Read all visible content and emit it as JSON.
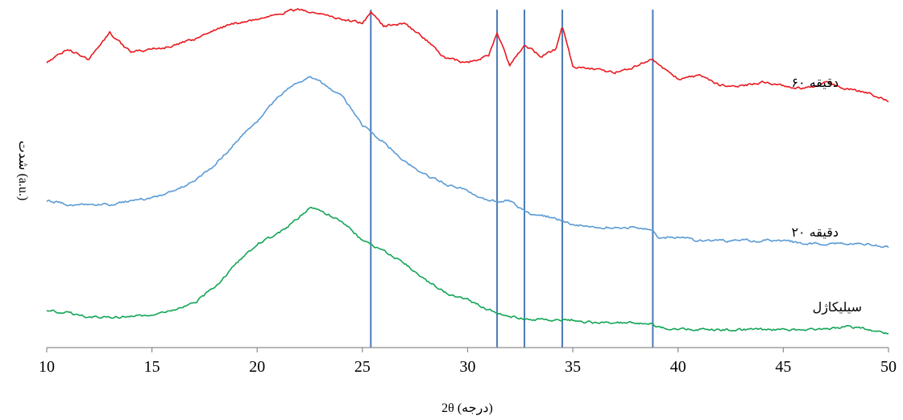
{
  "chart_data": {
    "type": "line",
    "xlabel": "2θ (درجه)",
    "ylabel": "شدت (a.u.)",
    "xlim": [
      10,
      50
    ],
    "x_ticks": [
      10,
      15,
      20,
      25,
      30,
      35,
      40,
      45,
      50
    ],
    "ylim": [
      0,
      100
    ],
    "grid": false,
    "legend": "labels placed at right beside each curve",
    "reference_lines": [
      25.4,
      31.4,
      32.7,
      34.5,
      38.8
    ],
    "reference_line_color": "#4a7ab5",
    "series": [
      {
        "name": "۶۰ دقیقه",
        "color": "#e8191e",
        "points": [
          [
            10,
            84
          ],
          [
            11,
            88
          ],
          [
            12,
            85
          ],
          [
            13,
            93
          ],
          [
            14,
            87
          ],
          [
            15,
            88
          ],
          [
            16,
            89
          ],
          [
            17,
            91
          ],
          [
            18,
            94
          ],
          [
            19,
            96
          ],
          [
            20,
            97
          ],
          [
            21,
            99
          ],
          [
            22,
            100
          ],
          [
            23,
            99
          ],
          [
            24,
            97
          ],
          [
            25,
            96
          ],
          [
            25.4,
            99
          ],
          [
            26,
            95
          ],
          [
            27,
            96
          ],
          [
            28,
            91
          ],
          [
            29,
            85
          ],
          [
            30,
            84
          ],
          [
            31,
            86
          ],
          [
            31.4,
            93
          ],
          [
            32,
            83
          ],
          [
            32.7,
            89
          ],
          [
            33.5,
            86
          ],
          [
            34.2,
            88
          ],
          [
            34.5,
            95
          ],
          [
            35,
            83
          ],
          [
            36,
            82
          ],
          [
            37,
            81
          ],
          [
            38,
            83
          ],
          [
            38.8,
            85
          ],
          [
            39.5,
            81
          ],
          [
            40,
            79
          ],
          [
            41,
            80
          ],
          [
            42,
            77
          ],
          [
            43,
            77
          ],
          [
            44,
            78
          ],
          [
            45,
            77
          ],
          [
            46,
            76
          ],
          [
            47,
            78
          ],
          [
            48,
            76
          ],
          [
            49,
            75
          ],
          [
            50,
            72
          ]
        ]
      },
      {
        "name": "۲۰ دقیقه",
        "color": "#5b9bd5",
        "points": [
          [
            10,
            42
          ],
          [
            11,
            41
          ],
          [
            12,
            41
          ],
          [
            13,
            41
          ],
          [
            14,
            42
          ],
          [
            15,
            43
          ],
          [
            16,
            45
          ],
          [
            17,
            48
          ],
          [
            18,
            53
          ],
          [
            19,
            60
          ],
          [
            20,
            66
          ],
          [
            21,
            74
          ],
          [
            22,
            78
          ],
          [
            22.5,
            80
          ],
          [
            23,
            78
          ],
          [
            24,
            74
          ],
          [
            25,
            65
          ],
          [
            26,
            60
          ],
          [
            27,
            54
          ],
          [
            28,
            50
          ],
          [
            29,
            47
          ],
          [
            30,
            45
          ],
          [
            31,
            42
          ],
          [
            32,
            42
          ],
          [
            32.7,
            39
          ],
          [
            33,
            38
          ],
          [
            34,
            37
          ],
          [
            35,
            35
          ],
          [
            36,
            34
          ],
          [
            37,
            34
          ],
          [
            38,
            34
          ],
          [
            38.8,
            33
          ],
          [
            39,
            31
          ],
          [
            40,
            31
          ],
          [
            41,
            30
          ],
          [
            42,
            30
          ],
          [
            43,
            30
          ],
          [
            44,
            30
          ],
          [
            45,
            30
          ],
          [
            46,
            29
          ],
          [
            47,
            29
          ],
          [
            48,
            29
          ],
          [
            49,
            29
          ],
          [
            50,
            28
          ]
        ]
      },
      {
        "name": "سیلیکاژل",
        "color": "#13a556",
        "points": [
          [
            10,
            9
          ],
          [
            11,
            8
          ],
          [
            12,
            7
          ],
          [
            13,
            7
          ],
          [
            14,
            7
          ],
          [
            15,
            7
          ],
          [
            16,
            9
          ],
          [
            17,
            11
          ],
          [
            18,
            16
          ],
          [
            19,
            23
          ],
          [
            20,
            29
          ],
          [
            21,
            32
          ],
          [
            22,
            37
          ],
          [
            22.5,
            40
          ],
          [
            23,
            39
          ],
          [
            24,
            36
          ],
          [
            25,
            30
          ],
          [
            26,
            27
          ],
          [
            27,
            23
          ],
          [
            28,
            18
          ],
          [
            29,
            14
          ],
          [
            30,
            12
          ],
          [
            31,
            9
          ],
          [
            32,
            7
          ],
          [
            33,
            6
          ],
          [
            34,
            6
          ],
          [
            35,
            6
          ],
          [
            36,
            5
          ],
          [
            37,
            5
          ],
          [
            38,
            5
          ],
          [
            38.8,
            5
          ],
          [
            39,
            4
          ],
          [
            40,
            3
          ],
          [
            41,
            3
          ],
          [
            42,
            3
          ],
          [
            43,
            3
          ],
          [
            44,
            3
          ],
          [
            45,
            3
          ],
          [
            46,
            3
          ],
          [
            47,
            3
          ],
          [
            48,
            4
          ],
          [
            49,
            3
          ],
          [
            50,
            2
          ]
        ]
      }
    ],
    "series_labels": [
      "۶۰ دقیقه",
      "۲۰ دقیقه",
      "سیلیکاژل"
    ]
  }
}
